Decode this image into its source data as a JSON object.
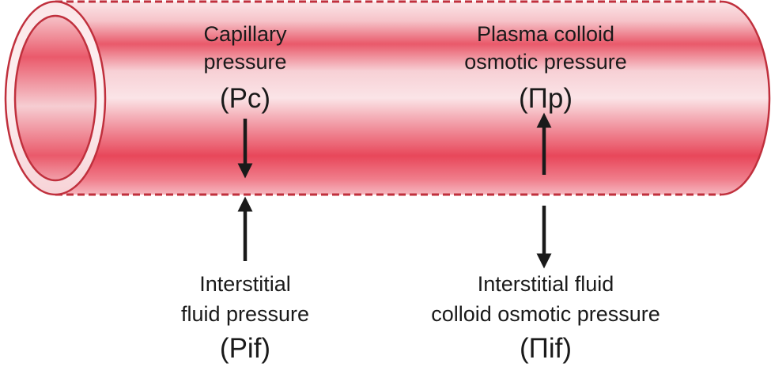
{
  "forces": [
    {
      "id": "capillary-pressure",
      "line1": "Capillary",
      "line2": "pressure",
      "symbol": "(Pc)",
      "direction": "down"
    },
    {
      "id": "plasma-colloid-osmotic-pressure",
      "line1": "Plasma colloid",
      "line2": "osmotic pressure",
      "symbol": "(Πp)",
      "direction": "up"
    },
    {
      "id": "interstitial-fluid-pressure",
      "line1": "Interstitial",
      "line2": "fluid pressure",
      "symbol": "(Pif)",
      "direction": "up"
    },
    {
      "id": "interstitial-fluid-colloid-osmotic-pressure",
      "line1": "Interstitial fluid",
      "line2": "colloid osmotic pressure",
      "symbol": "(Πif)",
      "direction": "down"
    }
  ],
  "colors": {
    "vessel_light": "#fbe6e8",
    "vessel_mid": "#f3aab2",
    "vessel_dark": "#e8475a",
    "vessel_outline": "#c0303d",
    "arrow": "#1a1a1a",
    "text": "#1a1a1a"
  }
}
